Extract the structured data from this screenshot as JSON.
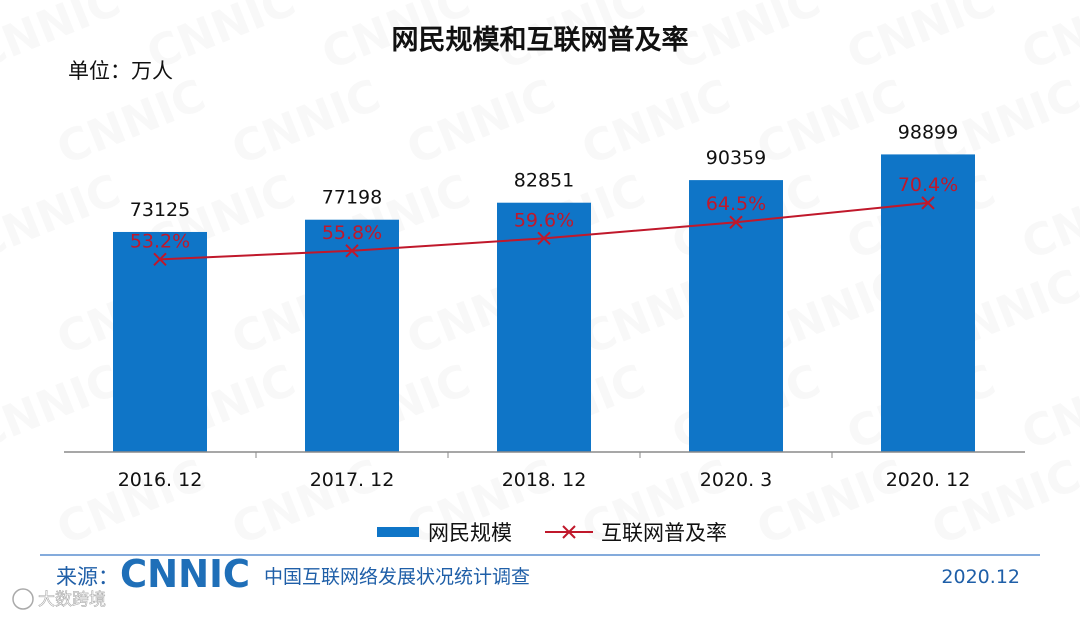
{
  "chart_data": {
    "type": "bar",
    "title": "网民规模和互联网普及率",
    "unit_label": "单位：万人",
    "categories": [
      "2016. 12",
      "2017. 12",
      "2018. 12",
      "2020. 3",
      "2020. 12"
    ],
    "series": [
      {
        "name": "网民规模",
        "type": "bar",
        "values": [
          73125,
          77198,
          82851,
          90359,
          98899
        ],
        "labels": [
          "73125",
          "77198",
          "82851",
          "90359",
          "98899"
        ]
      },
      {
        "name": "互联网普及率",
        "type": "line",
        "values": [
          53.2,
          55.8,
          59.6,
          64.5,
          70.4
        ],
        "labels": [
          "53.2%",
          "55.8%",
          "59.6%",
          "64.5%",
          "70.4%"
        ]
      }
    ],
    "colors": {
      "bar": "#0f75c7",
      "line": "#c0182b"
    },
    "legend_position": "bottom"
  },
  "footer": {
    "source_label": "来源：",
    "logo": "CNNIC",
    "org": "中国互联网络发展状况统计调查",
    "date": "2020.12"
  },
  "watermark": {
    "text": "CNNIC",
    "corner_brand": "大数跨境"
  }
}
